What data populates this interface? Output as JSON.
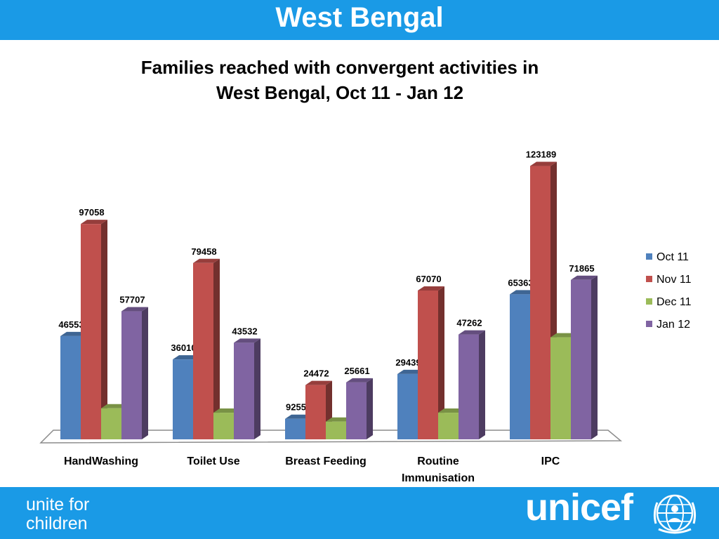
{
  "header": {
    "title": "West Bengal"
  },
  "footer": {
    "tagline_line1": "unite for",
    "tagline_line2": "children",
    "logo_text": "unicef"
  },
  "colors": {
    "header_bg": "#1a9ae6",
    "series": [
      "#4f81bd",
      "#c0504d",
      "#9bbb59",
      "#8064a2"
    ]
  },
  "chart_data": {
    "type": "bar",
    "title_line1": "Families reached with convergent activities in",
    "title_line2": "West Bengal, Oct 11 - Jan 12",
    "categories": [
      {
        "line1": "HandWashing",
        "line2": ""
      },
      {
        "line1": "Toilet Use",
        "line2": ""
      },
      {
        "line1": "Breast Feeding",
        "line2": ""
      },
      {
        "line1": "Routine",
        "line2": "Immunisation"
      },
      {
        "line1": "IPC",
        "line2": ""
      }
    ],
    "series": [
      {
        "name": "Oct 11",
        "values": [
          46553,
          36010,
          9255,
          29439,
          65363
        ],
        "labels": [
          "46553",
          "36010",
          "9255",
          "29439",
          "65363"
        ]
      },
      {
        "name": "Nov 11",
        "values": [
          97058,
          79458,
          24472,
          67070,
          123189
        ],
        "labels": [
          "97058",
          "79458",
          "24472",
          "67070",
          "123189"
        ]
      },
      {
        "name": "Dec 11",
        "values": [
          14000,
          12000,
          8000,
          12000,
          46000
        ],
        "labels": [
          "",
          "",
          "",
          "",
          ""
        ]
      },
      {
        "name": "Jan 12",
        "values": [
          57707,
          43532,
          25661,
          47262,
          71865
        ],
        "labels": [
          "57707",
          "43532",
          "25661",
          "47262",
          "71865"
        ]
      }
    ],
    "legend_position": "right",
    "grid": false,
    "ylim": [
      0,
      130000
    ]
  }
}
